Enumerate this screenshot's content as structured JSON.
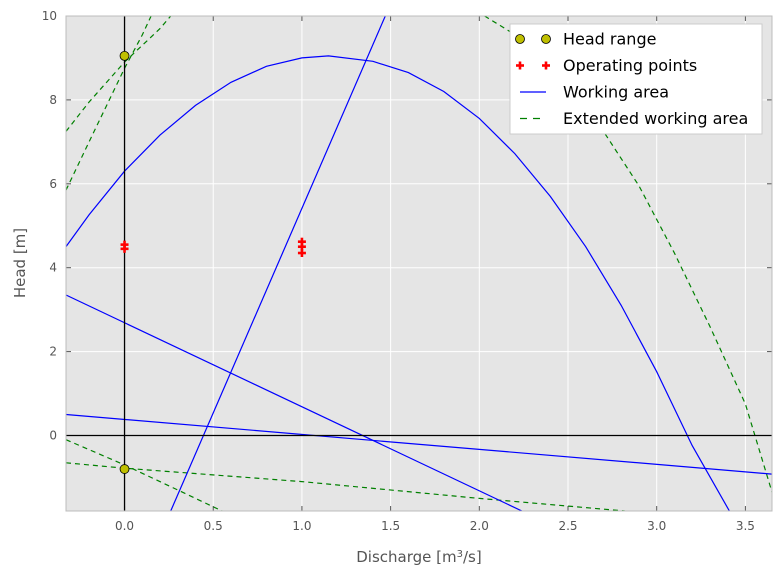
{
  "chart_data": {
    "type": "line",
    "title": "",
    "xlabel": "Discharge [m",
    "xlabel_sup": "3",
    "xlabel_end": "/s]",
    "ylabel": "Head [m]",
    "xlim": [
      -0.33,
      3.65
    ],
    "ylim": [
      -1.8,
      10
    ],
    "xticks": [
      0.0,
      0.5,
      1.0,
      1.5,
      2.0,
      2.5,
      3.0,
      3.5
    ],
    "xtick_labels": [
      "0.0",
      "0.5",
      "1.0",
      "1.5",
      "2.0",
      "2.5",
      "3.0",
      "3.5"
    ],
    "yticks": [
      0,
      2,
      4,
      6,
      8,
      10
    ],
    "ytick_labels": [
      "0",
      "2",
      "4",
      "6",
      "8",
      "10"
    ],
    "grid": true,
    "legend_position": "top-right",
    "colors": {
      "background": "#e5e5e5",
      "head_range": "#bfbf00",
      "operating_points": "#ff0000",
      "working_area": "#0000ff",
      "extended_working_area": "#008000",
      "reference_lines": "#000000"
    },
    "legend": [
      {
        "label": "Head range",
        "style": "marker-circle"
      },
      {
        "label": "Operating points",
        "style": "marker-plus"
      },
      {
        "label": "Working area",
        "style": "solid"
      },
      {
        "label": "Extended working area",
        "style": "dashed"
      }
    ],
    "series": [
      {
        "name": "Head range",
        "kind": "points",
        "points": [
          [
            0.0,
            9.05
          ],
          [
            0.0,
            -0.8
          ]
        ]
      },
      {
        "name": "Operating points",
        "kind": "points",
        "points": [
          [
            0.0,
            4.55
          ],
          [
            0.0,
            4.45
          ],
          [
            1.0,
            4.62
          ],
          [
            1.0,
            4.5
          ],
          [
            1.0,
            4.35
          ]
        ]
      },
      {
        "name": "Working area",
        "kind": "curve",
        "curves": [
          {
            "points": [
              [
                -0.33,
                4.5
              ],
              [
                -0.2,
                5.26
              ],
              [
                0.0,
                6.3
              ],
              [
                0.2,
                7.16
              ],
              [
                0.4,
                7.87
              ],
              [
                0.6,
                8.42
              ],
              [
                0.8,
                8.8
              ],
              [
                1.0,
                9.0
              ],
              [
                1.15,
                9.05
              ],
              [
                1.4,
                8.92
              ],
              [
                1.6,
                8.65
              ],
              [
                1.8,
                8.2
              ],
              [
                2.0,
                7.56
              ],
              [
                2.2,
                6.72
              ],
              [
                2.4,
                5.7
              ],
              [
                2.6,
                4.5
              ],
              [
                2.8,
                3.1
              ],
              [
                3.0,
                1.52
              ],
              [
                3.2,
                -0.24
              ],
              [
                3.41,
                -1.8
              ]
            ]
          },
          {
            "points": [
              [
                0.26,
                -1.8
              ],
              [
                1.47,
                10.0
              ]
            ]
          },
          {
            "points": [
              [
                -0.33,
                3.35
              ],
              [
                2.24,
                -1.8
              ]
            ]
          },
          {
            "points": [
              [
                -0.33,
                0.5
              ],
              [
                3.65,
                -0.92
              ]
            ]
          }
        ]
      },
      {
        "name": "Extended working area",
        "kind": "curve",
        "curves": [
          {
            "points": [
              [
                -0.33,
                5.85
              ],
              [
                -0.2,
                7.0
              ],
              [
                0.0,
                8.75
              ],
              [
                0.1,
                9.55
              ],
              [
                0.15,
                10.0
              ]
            ]
          },
          {
            "points": [
              [
                -0.33,
                7.25
              ],
              [
                -0.2,
                7.95
              ],
              [
                0.0,
                8.9
              ],
              [
                0.2,
                9.7
              ],
              [
                0.26,
                10.0
              ]
            ]
          },
          {
            "points": [
              [
                2.03,
                10.0
              ],
              [
                2.3,
                9.3
              ],
              [
                2.6,
                7.9
              ],
              [
                2.9,
                5.95
              ],
              [
                3.1,
                4.35
              ],
              [
                3.3,
                2.6
              ],
              [
                3.5,
                0.75
              ],
              [
                3.65,
                -1.35
              ]
            ]
          },
          {
            "points": [
              [
                -0.33,
                -0.65
              ],
              [
                0.0,
                -0.78
              ],
              [
                1.0,
                -1.1
              ],
              [
                2.0,
                -1.5
              ],
              [
                2.82,
                -1.8
              ]
            ]
          },
          {
            "points": [
              [
                -0.33,
                -0.1
              ],
              [
                0.0,
                -0.7
              ],
              [
                0.3,
                -1.3
              ],
              [
                0.55,
                -1.8
              ]
            ]
          }
        ]
      },
      {
        "name": "Reference lines",
        "kind": "reference",
        "vertical_x": 0.0,
        "horizontal_y": 0.0
      }
    ]
  }
}
